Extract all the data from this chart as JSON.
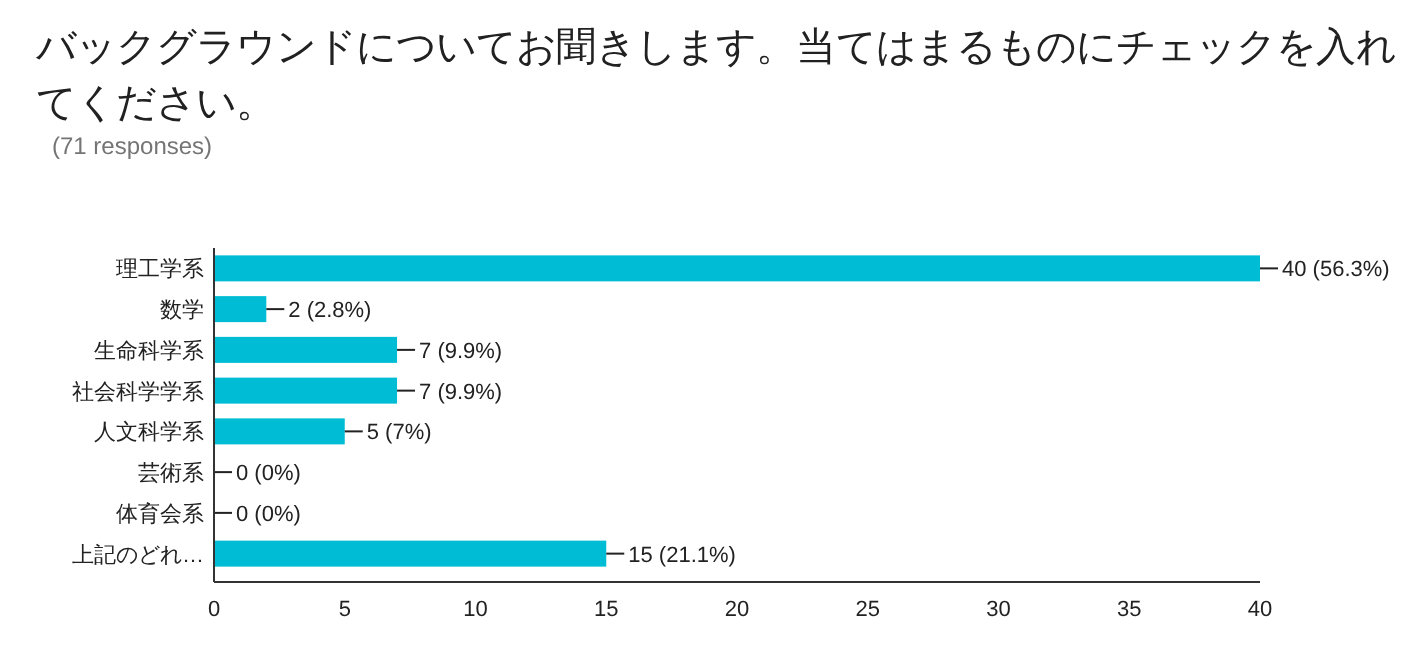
{
  "chart_data": {
    "type": "bar",
    "orientation": "horizontal",
    "title": "バックグラウンドについてお聞きします。当てはまるものにチェックを入れてください。",
    "subtitle": "(71 responses)",
    "categories": [
      "理工学系",
      "数学",
      "生命科学系",
      "社会科学学系",
      "人文科学系",
      "芸術系",
      "体育会系",
      "上記のどれ…"
    ],
    "values": [
      40,
      2,
      7,
      7,
      5,
      0,
      0,
      15
    ],
    "value_labels": [
      "40 (56.3%)",
      "2 (2.8%)",
      "7 (9.9%)",
      "7 (9.9%)",
      "5 (7%)",
      "0 (0%)",
      "0 (0%)",
      "15 (21.1%)"
    ],
    "color": "#00bcd4",
    "xlim": [
      0,
      40
    ],
    "xticks": [
      0,
      5,
      10,
      15,
      20,
      25,
      30,
      35,
      40
    ]
  }
}
